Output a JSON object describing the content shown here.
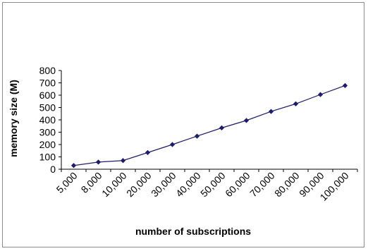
{
  "chart_data": {
    "type": "line",
    "title": "",
    "xlabel": "number of subscriptions",
    "ylabel": "memory size (M)",
    "categories": [
      "5,000",
      "8,000",
      "10,000",
      "20,000",
      "30,000",
      "40,000",
      "50,000",
      "60,000",
      "70,000",
      "80,000",
      "90,000",
      "100,000"
    ],
    "series": [
      {
        "values": [
          30,
          58,
          70,
          135,
          200,
          268,
          335,
          395,
          468,
          530,
          605,
          678
        ]
      }
    ],
    "ylim": [
      0,
      800
    ],
    "yticks": [
      0,
      100,
      200,
      300,
      400,
      500,
      600,
      700,
      800
    ],
    "grid": false,
    "legend": "none",
    "colors": {
      "series": "#1c1c6e",
      "axis": "#000000",
      "frame": "#8a8a8a"
    }
  }
}
